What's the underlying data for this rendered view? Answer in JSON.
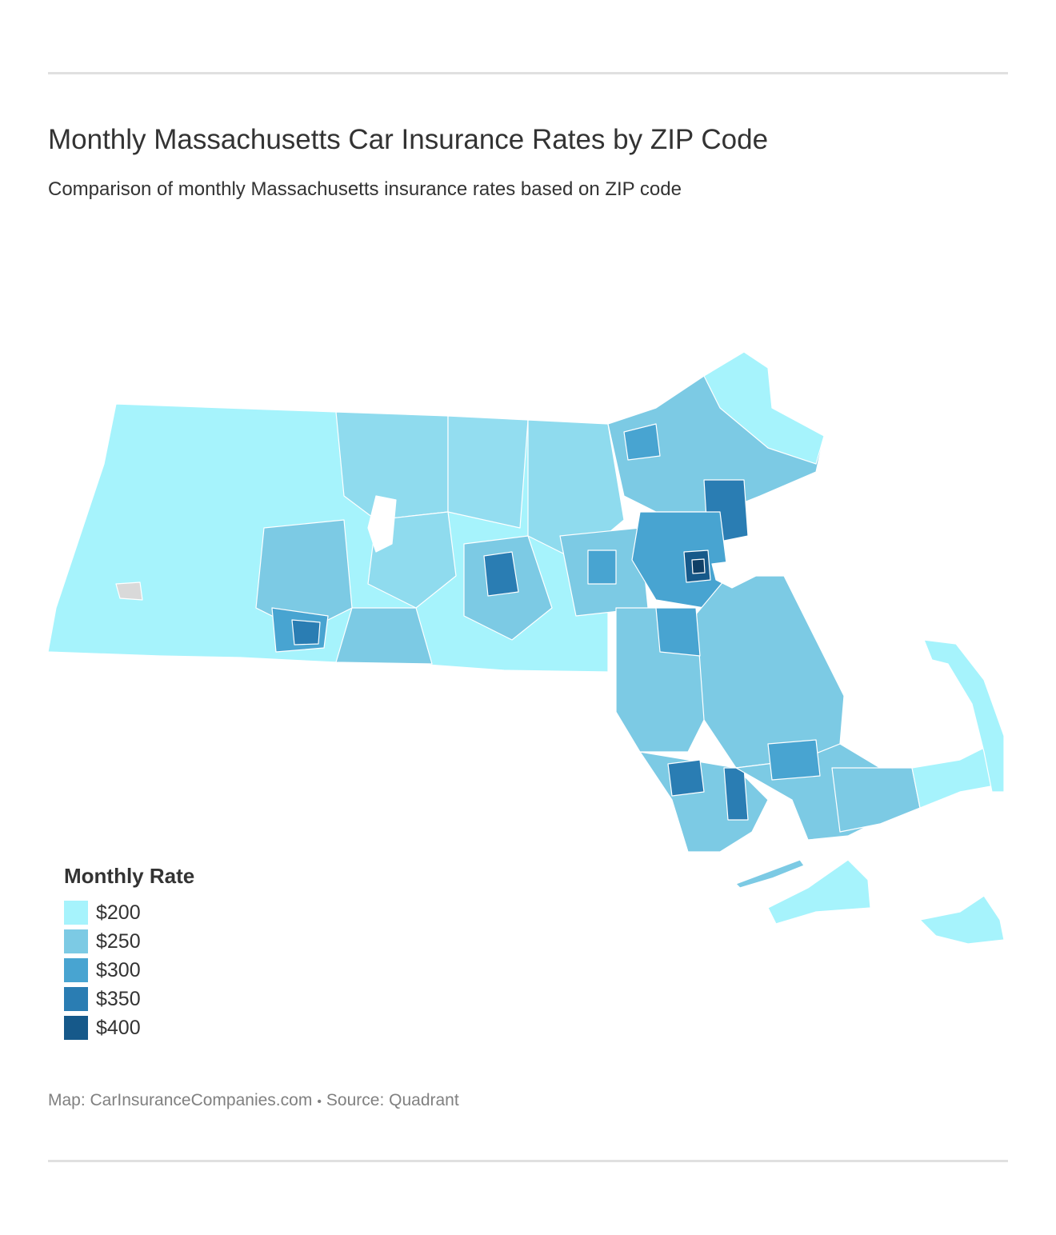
{
  "header": {
    "title": "Monthly Massachusetts Car Insurance Rates by ZIP Code",
    "subtitle": "Comparison of monthly Massachusetts insurance rates based on ZIP code"
  },
  "legend": {
    "title": "Monthly Rate",
    "items": [
      {
        "label": "$200",
        "color": "#a6f3fc"
      },
      {
        "label": "$250",
        "color": "#7ccae4"
      },
      {
        "label": "$300",
        "color": "#48a4d1"
      },
      {
        "label": "$350",
        "color": "#2a7db3"
      },
      {
        "label": "$400",
        "color": "#16598a"
      }
    ]
  },
  "map": {
    "region": "Massachusetts",
    "no_data_color": "#d9d9d9",
    "border_color": "#ffffff"
  },
  "footer": {
    "map_credit": "Map: CarInsuranceCompanies.com",
    "separator": "•",
    "source": "Source: Quadrant"
  }
}
